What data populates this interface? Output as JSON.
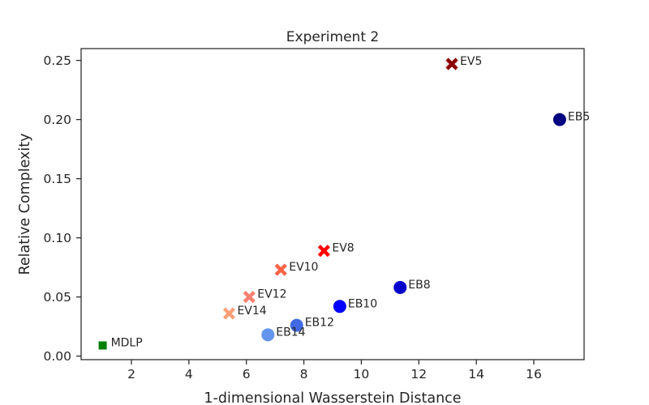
{
  "chart_data": {
    "type": "scatter",
    "title": "Experiment 2",
    "xlabel": "1-dimensional Wasserstein Distance",
    "ylabel": "Relative Complexity",
    "xlim": [
      0.25,
      17.75
    ],
    "ylim": [
      -0.003,
      0.26
    ],
    "x_ticks": [
      2,
      4,
      6,
      8,
      10,
      12,
      14,
      16
    ],
    "y_ticks": [
      0.0,
      0.05,
      0.1,
      0.15,
      0.2,
      0.25
    ],
    "x_tick_labels": [
      "2",
      "4",
      "6",
      "8",
      "10",
      "12",
      "14",
      "16"
    ],
    "y_tick_labels": [
      "0.00",
      "0.05",
      "0.10",
      "0.15",
      "0.20",
      "0.25"
    ],
    "grid": false,
    "points": [
      {
        "label": "EV5",
        "x": 13.15,
        "y": 0.247,
        "marker": "x",
        "color": "#8b0000"
      },
      {
        "label": "EV8",
        "x": 8.7,
        "y": 0.089,
        "marker": "x",
        "color": "#ff0000"
      },
      {
        "label": "EV10",
        "x": 7.2,
        "y": 0.073,
        "marker": "x",
        "color": "#ff6347"
      },
      {
        "label": "EV12",
        "x": 6.1,
        "y": 0.05,
        "marker": "x",
        "color": "#fa8072"
      },
      {
        "label": "EV14",
        "x": 5.4,
        "y": 0.036,
        "marker": "x",
        "color": "#ffa07a"
      },
      {
        "label": "EB5",
        "x": 16.9,
        "y": 0.2,
        "marker": "circle",
        "color": "#000080"
      },
      {
        "label": "EB8",
        "x": 11.35,
        "y": 0.058,
        "marker": "circle",
        "color": "#0000cd"
      },
      {
        "label": "EB10",
        "x": 9.25,
        "y": 0.042,
        "marker": "circle",
        "color": "#0000ff"
      },
      {
        "label": "EB12",
        "x": 7.75,
        "y": 0.026,
        "marker": "circle",
        "color": "#4169e1"
      },
      {
        "label": "EB14",
        "x": 6.75,
        "y": 0.018,
        "marker": "circle",
        "color": "#6495ed"
      },
      {
        "label": "MDLP",
        "x": 1.0,
        "y": 0.009,
        "marker": "square",
        "color": "#008000"
      }
    ]
  }
}
